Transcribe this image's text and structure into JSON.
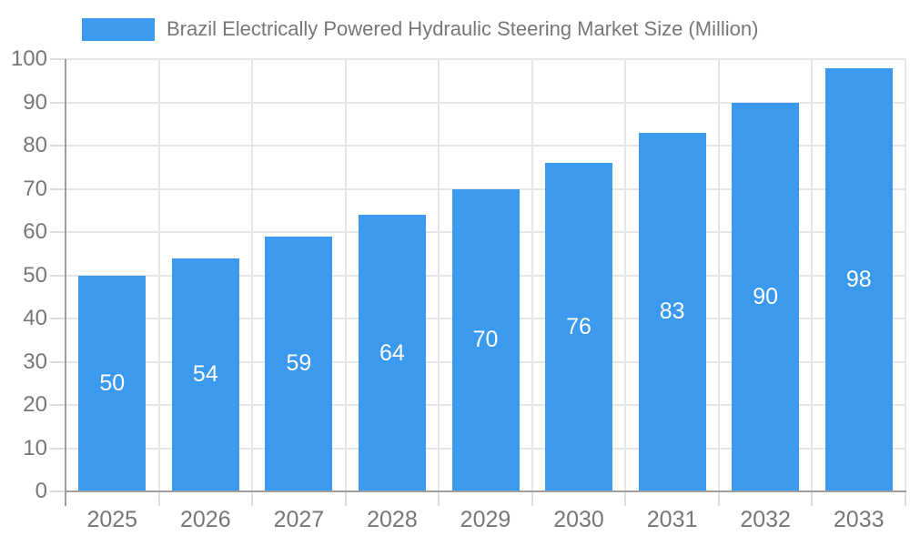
{
  "legend": {
    "label": "Brazil Electrically Powered Hydraulic Steering Market Size (Million)",
    "swatch_color": "#3B99EE"
  },
  "chart_data": {
    "type": "bar",
    "title": "Brazil Electrically Powered Hydraulic Steering Market Size (Million)",
    "series": [
      {
        "name": "Brazil Electrically Powered Hydraulic Steering Market Size (Million)",
        "values": [
          50,
          54,
          59,
          64,
          70,
          76,
          83,
          90,
          98
        ]
      }
    ],
    "categories": [
      "2025",
      "2026",
      "2027",
      "2028",
      "2029",
      "2030",
      "2031",
      "2032",
      "2033"
    ],
    "values": [
      50,
      54,
      59,
      64,
      70,
      76,
      83,
      90,
      98
    ],
    "data_labels": [
      "50",
      "54",
      "59",
      "64",
      "70",
      "76",
      "83",
      "90",
      "98"
    ],
    "xlabel": "",
    "ylabel": "",
    "ylim": [
      0,
      100
    ],
    "ytick_step": 10,
    "yticks": [
      0,
      10,
      20,
      30,
      40,
      50,
      60,
      70,
      80,
      90,
      100
    ],
    "grid": true,
    "legend_position": "top",
    "colors": {
      "bar": "#3B99EE",
      "data_label": "#FFFFFF",
      "grid": "#E6E6E6",
      "tick": "#DDDDDD",
      "axis_line": "#9E9E9E",
      "axis_text": "#777777",
      "background": "#FFFFFF"
    }
  }
}
